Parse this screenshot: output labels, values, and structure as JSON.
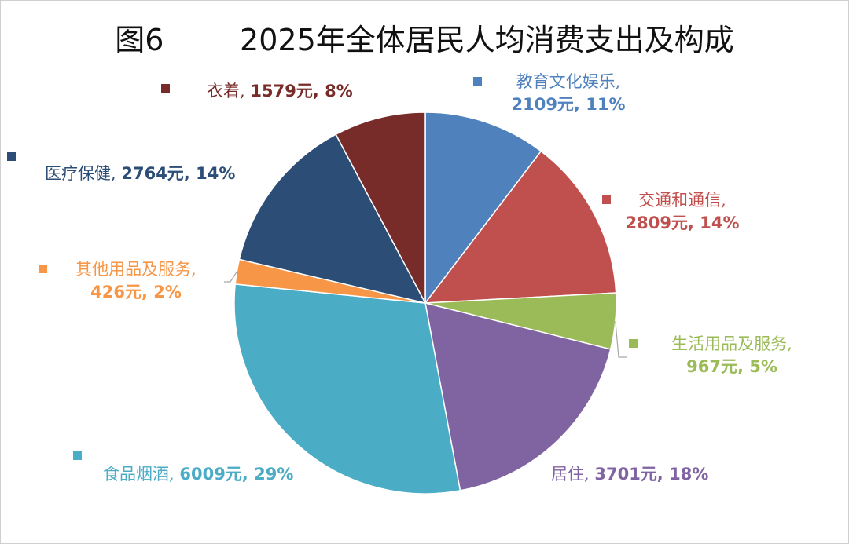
{
  "chart_data": {
    "type": "pie",
    "title": "图6        2025年全体居民人均消费支出及构成",
    "unit": "元",
    "slices": [
      {
        "name": "教育文化娱乐",
        "value": 2109,
        "percent": "11%",
        "color": "#4f81bd"
      },
      {
        "name": "交通和通信",
        "value": 2809,
        "percent": "14%",
        "color": "#c0504d"
      },
      {
        "name": "生活用品及服务",
        "value": 967,
        "percent": "5%",
        "color": "#9bbb59"
      },
      {
        "name": "居住",
        "value": 3701,
        "percent": "18%",
        "color": "#8064a2"
      },
      {
        "name": "食品烟酒",
        "value": 6009,
        "percent": "29%",
        "color": "#4bacc6"
      },
      {
        "name": "其他用品及服务",
        "value": 426,
        "percent": "2%",
        "color": "#f79646"
      },
      {
        "name": "医疗保健",
        "value": 2764,
        "percent": "14%",
        "color": "#2c4d75"
      },
      {
        "name": "衣着",
        "value": 1579,
        "percent": "8%",
        "color": "#772c2a"
      }
    ],
    "labels": [
      {
        "line1": "教育文化娱乐,",
        "line2": "2109元, 11%"
      },
      {
        "line1": "交通和通信,",
        "line2": "2809元, 14%"
      },
      {
        "line1": "生活用品及服务,",
        "line2": "967元, 5%"
      },
      {
        "line1": "居住, ",
        "line2": "3701元, 18%"
      },
      {
        "line1": "食品烟酒, ",
        "line2": "6009元, 29%"
      },
      {
        "line1": "其他用品及服务,",
        "line2": "426元, 2%"
      },
      {
        "line1": "医疗保健, ",
        "line2": "2764元, 14%"
      },
      {
        "line1": "衣着, ",
        "line2": "1579元, 8%"
      }
    ]
  }
}
